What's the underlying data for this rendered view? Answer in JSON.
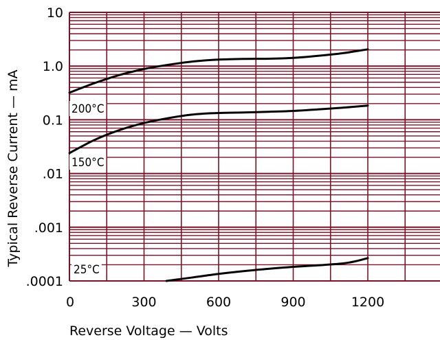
{
  "colors": {
    "grid": "#7a1228",
    "series": "#000000",
    "background": "#ffffff"
  },
  "chart_data": {
    "type": "line",
    "scale": {
      "x": "linear",
      "y": "log"
    },
    "grid": true,
    "xlabel": "Reverse Voltage — Volts",
    "ylabel": "Typical Reverse Current — mA",
    "xlim": [
      0,
      1500
    ],
    "ylim": [
      0.0001,
      10
    ],
    "x_ticks": [
      0,
      300,
      600,
      900,
      1200
    ],
    "x_tick_labels": [
      "0",
      "300",
      "600",
      "900",
      "1200"
    ],
    "y_ticks": [
      10,
      1,
      0.1,
      0.01,
      0.001,
      0.0001
    ],
    "y_tick_labels": [
      "10",
      "1.0",
      "0.1",
      ".01",
      ".001",
      ".0001"
    ],
    "series": [
      {
        "name": "200°C",
        "x": [
          0,
          100,
          200,
          300,
          400,
          500,
          600,
          700,
          800,
          900,
          1000,
          1100,
          1200
        ],
        "y": [
          0.32,
          0.48,
          0.68,
          0.88,
          1.06,
          1.22,
          1.32,
          1.36,
          1.37,
          1.42,
          1.55,
          1.74,
          2.05
        ]
      },
      {
        "name": "150°C",
        "x": [
          0,
          100,
          200,
          300,
          400,
          500,
          600,
          700,
          800,
          900,
          1000,
          1100,
          1200
        ],
        "y": [
          0.024,
          0.042,
          0.064,
          0.087,
          0.108,
          0.126,
          0.134,
          0.137,
          0.141,
          0.146,
          0.156,
          0.168,
          0.184
        ]
      },
      {
        "name": "25°C",
        "x": [
          390,
          500,
          600,
          700,
          800,
          900,
          1000,
          1100,
          1150,
          1200
        ],
        "y": [
          0.0001,
          0.000117,
          0.000135,
          0.000152,
          0.000168,
          0.000183,
          0.000195,
          0.000212,
          0.000232,
          0.000266
        ]
      }
    ]
  }
}
